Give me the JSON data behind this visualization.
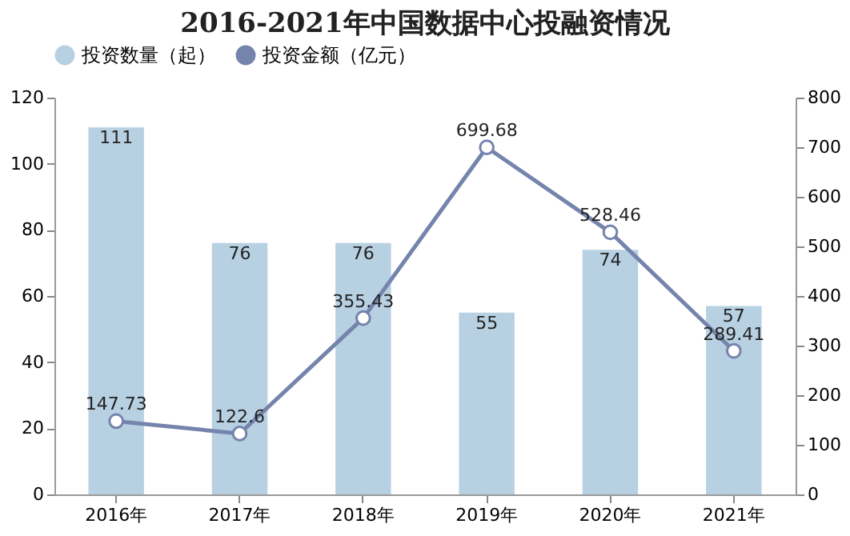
{
  "chart_data": {
    "type": "bar",
    "title": "2016-2021年中国数据中心投融资情况",
    "categories": [
      "2016年",
      "2017年",
      "2018年",
      "2019年",
      "2020年",
      "2021年"
    ],
    "series": [
      {
        "name": "投资数量（起）",
        "type": "bar",
        "color": "#b7d0e2",
        "values": [
          111,
          76,
          76,
          55,
          74,
          57
        ]
      },
      {
        "name": "投资金额（亿元）",
        "type": "line",
        "axis": "y2",
        "color": "#7584ad",
        "values": [
          147.73,
          122.6,
          355.43,
          699.68,
          528.46,
          289.41
        ]
      }
    ],
    "ylim": [
      0,
      120
    ],
    "yticks": [
      0,
      20,
      40,
      60,
      80,
      100,
      120
    ],
    "y2lim": [
      0,
      800
    ],
    "y2ticks": [
      0,
      100,
      200,
      300,
      400,
      500,
      600,
      700,
      800
    ],
    "data_labels": true,
    "legend": "top",
    "marker": "circle",
    "grid": false
  }
}
